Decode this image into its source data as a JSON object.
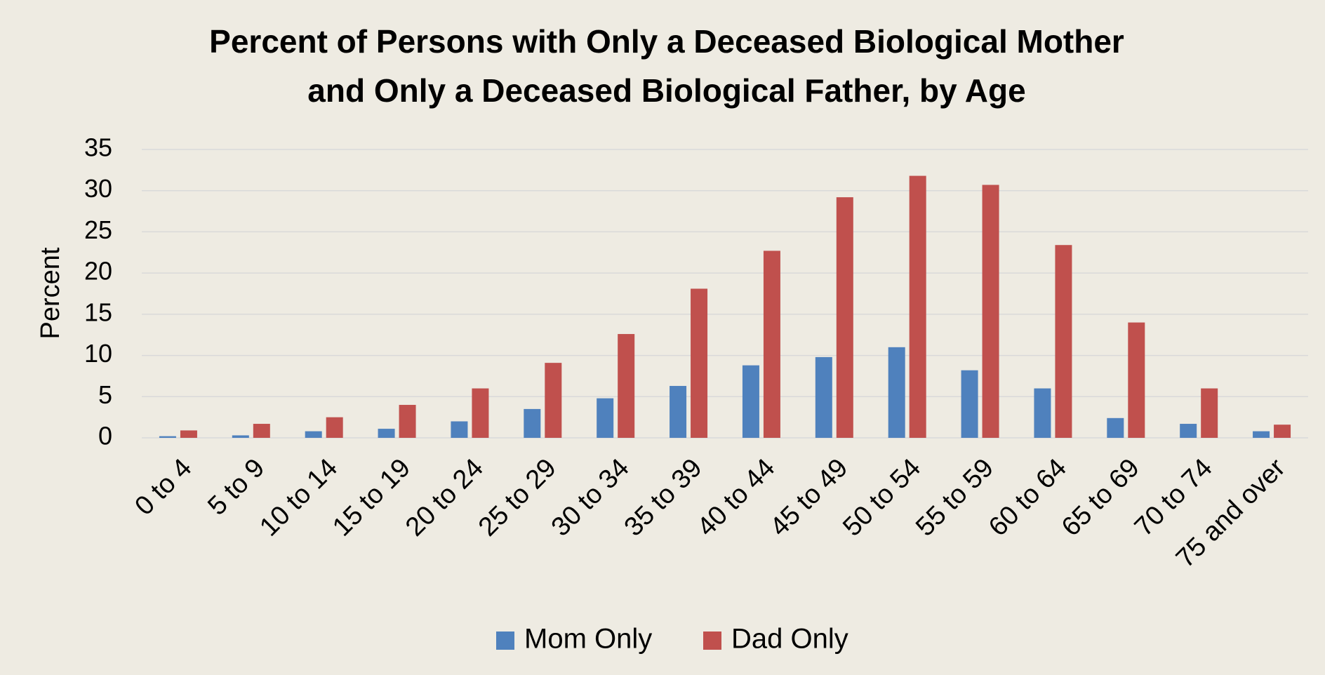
{
  "chart_data": {
    "type": "bar",
    "title": [
      "Percent of Persons with Only a Deceased Biological Mother",
      "and Only a Deceased Biological Father, by Age"
    ],
    "y_label": "Percent",
    "categories": [
      "0 to 4",
      "5 to 9",
      "10 to 14",
      "15 to 19",
      "20 to 24",
      "25 to 29",
      "30 to 34",
      "35 to 39",
      "40 to 44",
      "45 to 49",
      "50 to 54",
      "55 to 59",
      "60 to 64",
      "65 to 69",
      "70 to 74",
      "75 and over"
    ],
    "series": [
      {
        "name": "Mom Only",
        "color": "#4f81bd",
        "values": [
          0.2,
          0.3,
          0.8,
          1.1,
          2.0,
          3.5,
          4.8,
          6.3,
          8.8,
          9.8,
          11.0,
          8.2,
          6.0,
          2.4,
          1.7,
          0.8
        ]
      },
      {
        "name": "Dad Only",
        "color": "#c0504d",
        "values": [
          0.9,
          1.7,
          2.5,
          4.0,
          6.0,
          9.1,
          12.6,
          18.1,
          22.7,
          29.2,
          31.8,
          30.7,
          23.4,
          14.0,
          6.0,
          1.6
        ]
      }
    ],
    "ylim": [
      0,
      35
    ],
    "yticks": [
      0,
      5,
      10,
      15,
      20,
      25,
      30,
      35
    ],
    "grid": true,
    "legend": "bottom"
  }
}
